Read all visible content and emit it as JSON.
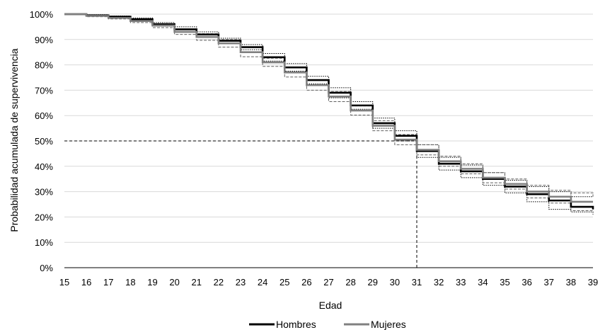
{
  "chart_data": {
    "type": "line",
    "step": true,
    "title": "",
    "xlabel": "Edad",
    "ylabel": "Probabilidad acumulada de supervivencia",
    "x": [
      15,
      16,
      17,
      18,
      19,
      20,
      21,
      22,
      23,
      24,
      25,
      26,
      27,
      28,
      29,
      30,
      31,
      32,
      33,
      34,
      35,
      36,
      37,
      38,
      39
    ],
    "x_ticks": [
      "15",
      "16",
      "17",
      "18",
      "19",
      "20",
      "21",
      "22",
      "23",
      "24",
      "25",
      "26",
      "27",
      "28",
      "29",
      "30",
      "31",
      "32",
      "33",
      "34",
      "35",
      "36",
      "37",
      "38",
      "39"
    ],
    "xlim": [
      15,
      39
    ],
    "ylim": [
      0,
      100
    ],
    "y_ticks": [
      "0%",
      "10%",
      "20%",
      "30%",
      "40%",
      "50%",
      "60%",
      "70%",
      "80%",
      "90%",
      "100%"
    ],
    "grid": true,
    "legend_position": "bottom",
    "series": [
      {
        "name": "Hombres",
        "color": "#000000",
        "values": [
          100,
          99.5,
          99,
          98,
          96,
          94,
          92,
          89.5,
          87,
          83,
          79,
          74,
          69,
          64,
          57,
          52,
          46,
          41,
          38,
          35,
          32,
          29,
          26.5,
          24,
          23
        ]
      },
      {
        "name": "Mujeres",
        "color": "#808080",
        "values": [
          100,
          99.3,
          98.5,
          97.3,
          95.5,
          93,
          91,
          88.5,
          85,
          81,
          77,
          72,
          67.5,
          62,
          56,
          50.5,
          46.5,
          42,
          39,
          35.5,
          33,
          30,
          28,
          26,
          26
        ]
      }
    ],
    "confidence_bands": [
      {
        "series": "Hombres",
        "style": "dotted",
        "color": "#000000",
        "upper": [
          100,
          99.8,
          99.3,
          98.5,
          96.7,
          95,
          93,
          90.5,
          88,
          84.5,
          80.5,
          75.5,
          71,
          65.5,
          59,
          54,
          48.5,
          43.5,
          40.5,
          37.5,
          34.5,
          32,
          30,
          28,
          29
        ],
        "lower": [
          100,
          99.2,
          98.7,
          97.5,
          95.3,
          93,
          91,
          88.5,
          86,
          81.5,
          77.5,
          72.5,
          67,
          62.5,
          55,
          50,
          43.5,
          38.5,
          35.5,
          32.5,
          29.5,
          26,
          23,
          22,
          21
        ]
      },
      {
        "series": "Mujeres",
        "style": "dashed",
        "color": "#606060",
        "upper": [
          100,
          99.6,
          98.9,
          97.9,
          96.3,
          94,
          92.3,
          90,
          86.8,
          82.6,
          78.8,
          74,
          69.5,
          63.8,
          58,
          52.5,
          48.5,
          44,
          41,
          37.5,
          35,
          32.5,
          30.5,
          29.5,
          28
        ],
        "lower": [
          100,
          99.0,
          98.1,
          96.7,
          94.7,
          92,
          89.7,
          87,
          83.2,
          79.4,
          75.2,
          70,
          65.5,
          60.2,
          54,
          48.5,
          44.5,
          40,
          37,
          33.5,
          31,
          27.5,
          25.5,
          22.5,
          24
        ]
      }
    ],
    "reference_lines": [
      {
        "type": "horizontal",
        "y": 50,
        "x_to": 31
      },
      {
        "type": "vertical",
        "x": 31,
        "y_to": 50
      }
    ],
    "legend": [
      "Hombres",
      "Mujeres"
    ]
  }
}
